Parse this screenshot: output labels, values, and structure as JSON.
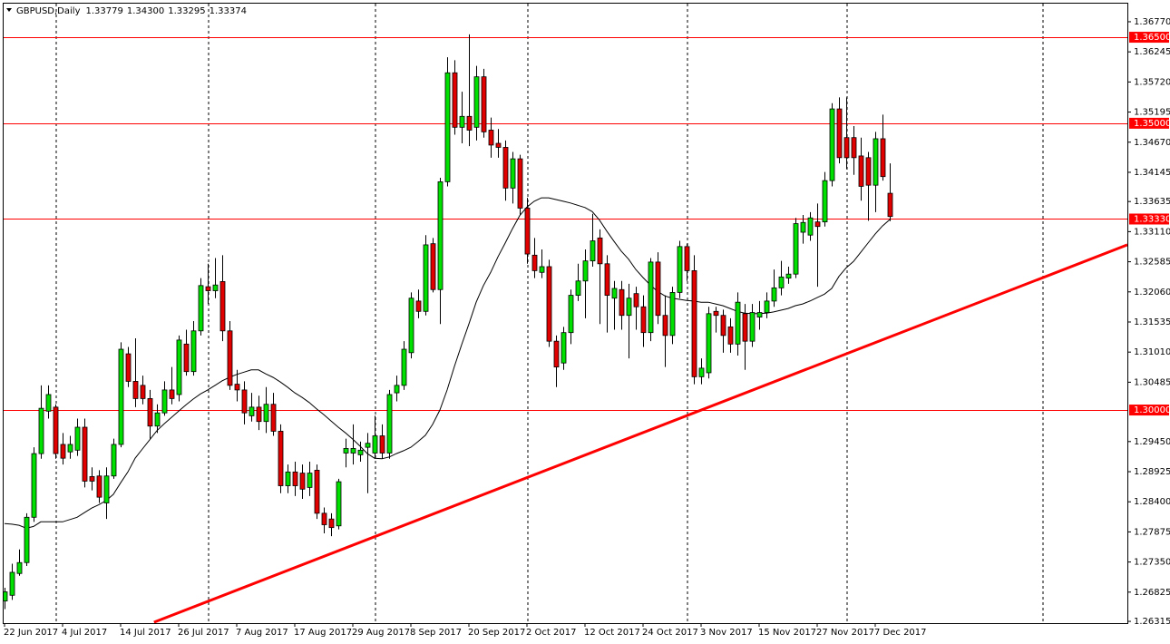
{
  "chart_data": {
    "type": "candlestick",
    "title": "GBPUSD,Daily",
    "header_values": [
      "1.33779",
      "1.34300",
      "1.33295",
      "1.33374"
    ],
    "categories": [
      "22 Jun 2017",
      null,
      null,
      null,
      null,
      null,
      null,
      null,
      "4 Jul 2017",
      null,
      null,
      null,
      null,
      null,
      null,
      null,
      "14 Jul 2017",
      null,
      null,
      null,
      null,
      null,
      null,
      null,
      "26 Jul 2017",
      null,
      null,
      null,
      null,
      null,
      null,
      null,
      "7 Aug 2017",
      null,
      null,
      null,
      null,
      null,
      null,
      null,
      "17 Aug 2017",
      null,
      null,
      null,
      null,
      null,
      null,
      null,
      "29 Aug 2017",
      null,
      null,
      null,
      null,
      null,
      null,
      null,
      "8 Sep 2017",
      null,
      null,
      null,
      null,
      null,
      null,
      null,
      "20 Sep 2017",
      null,
      null,
      null,
      null,
      null,
      null,
      null,
      "2 Oct 2017",
      null,
      null,
      null,
      null,
      null,
      null,
      null,
      "12 Oct 2017",
      null,
      null,
      null,
      null,
      null,
      null,
      null,
      "24 Oct 2017",
      null,
      null,
      null,
      null,
      null,
      null,
      null,
      "3 Nov 2017",
      null,
      null,
      null,
      null,
      null,
      null,
      null,
      "15 Nov 2017",
      null,
      null,
      null,
      null,
      null,
      null,
      null,
      "27 Nov 2017",
      null,
      null,
      null,
      null,
      null,
      null,
      null,
      "7 Dec 2017",
      null,
      null
    ],
    "open": [
      1.2667,
      1.2677,
      1.2715,
      1.2734,
      1.2813,
      1.2924,
      1.2998,
      1.3005,
      1.294,
      1.2927,
      1.293,
      1.297,
      1.2884,
      1.2885,
      1.2838,
      1.2885,
      1.294,
      1.3098,
      1.305,
      1.3043,
      1.302,
      1.2972,
      1.2995,
      1.3035,
      1.3027,
      1.3115,
      1.3067,
      1.3138,
      1.3215,
      1.3208,
      1.3224,
      1.3138,
      1.3045,
      1.3035,
      1.299,
      1.3005,
      1.298,
      1.301,
      1.2963,
      1.2868,
      1.2892,
      1.289,
      1.2865,
      1.2895,
      1.282,
      1.281,
      1.2798,
      1.2925,
      1.2925,
      1.2922,
      1.2935,
      1.2925,
      1.2955,
      1.2925,
      1.303,
      1.3043,
      1.31,
      1.319,
      1.3172,
      1.329,
      1.321,
      1.3398,
      1.3588,
      1.3493,
      1.3512,
      1.3493,
      1.3581,
      1.3488,
      1.3465,
      1.3458,
      1.3387,
      1.3438,
      1.3352,
      1.327,
      1.324,
      1.325,
      1.312,
      1.3082,
      1.3135,
      1.32,
      1.3225,
      1.326,
      1.33,
      1.3255,
      1.3195,
      1.321,
      1.3165,
      1.3203,
      1.318,
      1.3135,
      1.3258,
      1.3165,
      1.313,
      1.3205,
      1.3285,
      1.3243,
      1.3058,
      1.3065,
      1.3172,
      1.3165,
      1.3145,
      1.3115,
      1.3168,
      1.312,
      1.3162,
      1.317,
      1.319,
      1.3213,
      1.323,
      1.3237,
      1.331,
      1.3305,
      1.3328,
      1.3328,
      1.34,
      1.3525,
      1.3475,
      1.3475,
      1.3443,
      1.344,
      1.3392,
      1.3473,
      1.33779
    ],
    "high": [
      1.269,
      1.2732,
      1.2757,
      1.282,
      1.2935,
      1.3043,
      1.3043,
      1.301,
      1.296,
      1.2955,
      1.2985,
      1.2985,
      1.29,
      1.2895,
      1.29,
      1.295,
      1.3118,
      1.311,
      1.3125,
      1.306,
      1.3035,
      1.301,
      1.305,
      1.3075,
      1.313,
      1.314,
      1.3155,
      1.323,
      1.3255,
      1.3265,
      1.327,
      1.3155,
      1.307,
      1.305,
      1.303,
      1.3025,
      1.304,
      1.303,
      1.2975,
      1.2905,
      1.291,
      1.2905,
      1.291,
      1.2905,
      1.283,
      1.282,
      1.288,
      1.295,
      1.2975,
      1.2945,
      1.296,
      1.299,
      1.2975,
      1.3035,
      1.306,
      1.312,
      1.3205,
      1.321,
      1.3305,
      1.33,
      1.3405,
      1.3615,
      1.361,
      1.3555,
      1.3655,
      1.36,
      1.3595,
      1.351,
      1.349,
      1.347,
      1.345,
      1.3445,
      1.337,
      1.33,
      1.328,
      1.3262,
      1.313,
      1.3145,
      1.321,
      1.3255,
      1.328,
      1.3342,
      1.3315,
      1.327,
      1.3225,
      1.3225,
      1.322,
      1.3215,
      1.32,
      1.3265,
      1.3275,
      1.32,
      1.3215,
      1.3295,
      1.329,
      1.327,
      1.309,
      1.318,
      1.318,
      1.3175,
      1.316,
      1.3205,
      1.3185,
      1.3185,
      1.319,
      1.3205,
      1.3245,
      1.326,
      1.325,
      1.3335,
      1.334,
      1.3345,
      1.336,
      1.3415,
      1.3535,
      1.3545,
      1.3545,
      1.3495,
      1.3475,
      1.345,
      1.3485,
      1.3515,
      1.343
    ],
    "low": [
      1.2653,
      1.2669,
      1.2711,
      1.2728,
      1.2805,
      1.2915,
      1.2985,
      1.2915,
      1.2905,
      1.2915,
      1.292,
      1.2865,
      1.286,
      1.2838,
      1.281,
      1.288,
      1.2935,
      1.304,
      1.3005,
      1.301,
      1.295,
      1.296,
      1.299,
      1.301,
      1.3015,
      1.306,
      1.306,
      1.313,
      1.3185,
      1.3195,
      1.312,
      1.3035,
      1.3015,
      1.2975,
      1.298,
      1.2965,
      1.296,
      1.2955,
      1.2855,
      1.2855,
      1.285,
      1.2845,
      1.285,
      1.281,
      1.2785,
      1.278,
      1.2792,
      1.29,
      1.2905,
      1.291,
      1.2855,
      1.2915,
      1.2915,
      1.2915,
      1.3015,
      1.3035,
      1.309,
      1.316,
      1.3165,
      1.3205,
      1.315,
      1.339,
      1.348,
      1.3465,
      1.346,
      1.347,
      1.3475,
      1.344,
      1.344,
      1.3365,
      1.336,
      1.334,
      1.3255,
      1.323,
      1.323,
      1.311,
      1.304,
      1.307,
      1.3115,
      1.319,
      1.316,
      1.325,
      1.315,
      1.3135,
      1.314,
      1.314,
      1.309,
      1.314,
      1.311,
      1.312,
      1.315,
      1.3075,
      1.3115,
      1.3195,
      1.3225,
      1.3045,
      1.3045,
      1.3055,
      1.3135,
      1.31,
      1.31,
      1.3095,
      1.307,
      1.311,
      1.314,
      1.316,
      1.318,
      1.32,
      1.322,
      1.323,
      1.329,
      1.3295,
      1.3215,
      1.332,
      1.339,
      1.343,
      1.342,
      1.341,
      1.3365,
      1.333,
      1.3345,
      1.34,
      1.33295
    ],
    "close": [
      1.2683,
      1.2717,
      1.2734,
      1.2813,
      1.2924,
      1.3003,
      1.3027,
      1.2924,
      1.2916,
      1.294,
      1.297,
      1.2876,
      1.2876,
      1.2848,
      1.2885,
      1.294,
      1.3106,
      1.305,
      1.302,
      1.302,
      1.2972,
      1.2995,
      1.3035,
      1.302,
      1.3122,
      1.3067,
      1.3138,
      1.3217,
      1.3208,
      1.3218,
      1.3138,
      1.3043,
      1.3035,
      1.2995,
      1.3005,
      1.298,
      1.301,
      1.2963,
      1.2868,
      1.2892,
      1.2868,
      1.2862,
      1.289,
      1.282,
      1.28,
      1.2795,
      1.2875,
      1.2933,
      1.2933,
      1.293,
      1.2942,
      1.2955,
      1.2925,
      1.3027,
      1.3043,
      1.3106,
      1.3195,
      1.3172,
      1.3288,
      1.321,
      1.3398,
      1.3588,
      1.3493,
      1.3512,
      1.3488,
      1.3581,
      1.3485,
      1.3462,
      1.3458,
      1.3387,
      1.3438,
      1.3352,
      1.3272,
      1.3243,
      1.325,
      1.312,
      1.3075,
      1.3135,
      1.32,
      1.3225,
      1.326,
      1.3295,
      1.3255,
      1.32,
      1.3212,
      1.3165,
      1.3195,
      1.318,
      1.3135,
      1.3258,
      1.3165,
      1.313,
      1.3205,
      1.3285,
      1.3243,
      1.3058,
      1.3073,
      1.3168,
      1.3165,
      1.313,
      1.3115,
      1.3188,
      1.312,
      1.317,
      1.317,
      1.319,
      1.3213,
      1.3232,
      1.3237,
      1.3325,
      1.3327,
      1.3335,
      1.332,
      1.34,
      1.3525,
      1.344,
      1.344,
      1.344,
      1.339,
      1.3392,
      1.3473,
      1.3407,
      1.33374
    ],
    "up_color": "#00e000",
    "down_color": "#e00000",
    "wick_color": "#000000",
    "moving_average": {
      "color": "#000000",
      "values": [
        1.2802,
        1.2801,
        1.2799,
        1.2794,
        1.2797,
        1.2805,
        1.2805,
        1.2805,
        1.2805,
        1.2809,
        1.2813,
        1.2821,
        1.2829,
        1.2835,
        1.2842,
        1.2853,
        1.2873,
        1.2892,
        1.2916,
        1.2932,
        1.2948,
        1.2964,
        1.2976,
        1.2987,
        1.2998,
        1.3009,
        1.3019,
        1.3028,
        1.3035,
        1.3043,
        1.3051,
        1.3057,
        1.3062,
        1.3066,
        1.307,
        1.307,
        1.3063,
        1.3057,
        1.3049,
        1.304,
        1.303,
        1.3022,
        1.3013,
        1.3002,
        1.2992,
        1.2981,
        1.297,
        1.296,
        1.2949,
        1.2937,
        1.2924,
        1.2916,
        1.2915,
        1.2918,
        1.2924,
        1.2929,
        1.2935,
        1.2945,
        1.2956,
        1.2975,
        1.3,
        1.3035,
        1.3076,
        1.3114,
        1.315,
        1.3188,
        1.3217,
        1.324,
        1.3267,
        1.3291,
        1.3316,
        1.3339,
        1.3354,
        1.3364,
        1.337,
        1.337,
        1.3367,
        1.3364,
        1.3361,
        1.3357,
        1.3353,
        1.3346,
        1.3331,
        1.3312,
        1.3294,
        1.3277,
        1.3263,
        1.3245,
        1.3231,
        1.3218,
        1.3207,
        1.3199,
        1.3195,
        1.3193,
        1.3191,
        1.319,
        1.3188,
        1.3188,
        1.3185,
        1.3182,
        1.3177,
        1.3172,
        1.3169,
        1.3168,
        1.3168,
        1.3169,
        1.3171,
        1.3174,
        1.3177,
        1.3182,
        1.3185,
        1.319,
        1.3196,
        1.3202,
        1.3212,
        1.3233,
        1.3248,
        1.3259,
        1.3275,
        1.3291,
        1.3307,
        1.3321,
        1.3332
      ]
    },
    "levels": [
      {
        "value": 1.365,
        "label": "1.36500"
      },
      {
        "value": 1.35,
        "label": "1.35000"
      },
      {
        "value": 1.3333,
        "label": "1.33330"
      },
      {
        "value": 1.3,
        "label": "1.30000"
      }
    ],
    "level_color": "#ff0000",
    "trendline": {
      "points": [
        [
          20.6,
          1.263
        ],
        [
          154.75,
          1.3288
        ]
      ],
      "color": "#ff0000"
    },
    "ylim": [
      1.263,
      1.3707
    ],
    "yticks": [
      {
        "value": 1.3677,
        "label": "1.36770"
      },
      1.36245,
      {
        "value": 1.3572,
        "label": "1.35720"
      },
      1.35195,
      {
        "value": 1.3467,
        "label": "1.34670"
      },
      1.34145,
      1.33635,
      {
        "value": 1.3311,
        "label": "1.33110"
      },
      1.32585,
      {
        "value": 1.3206,
        "label": "1.32060"
      },
      1.31535,
      {
        "value": 1.3101,
        "label": "1.31010"
      },
      1.30485,
      {
        "value": 1.2945,
        "label": "1.29450"
      },
      1.28925,
      {
        "value": 1.284,
        "label": "1.28400"
      },
      1.27875,
      {
        "value": 1.2735,
        "label": "1.27350"
      },
      1.26825,
      1.26315
    ],
    "grid": false
  }
}
